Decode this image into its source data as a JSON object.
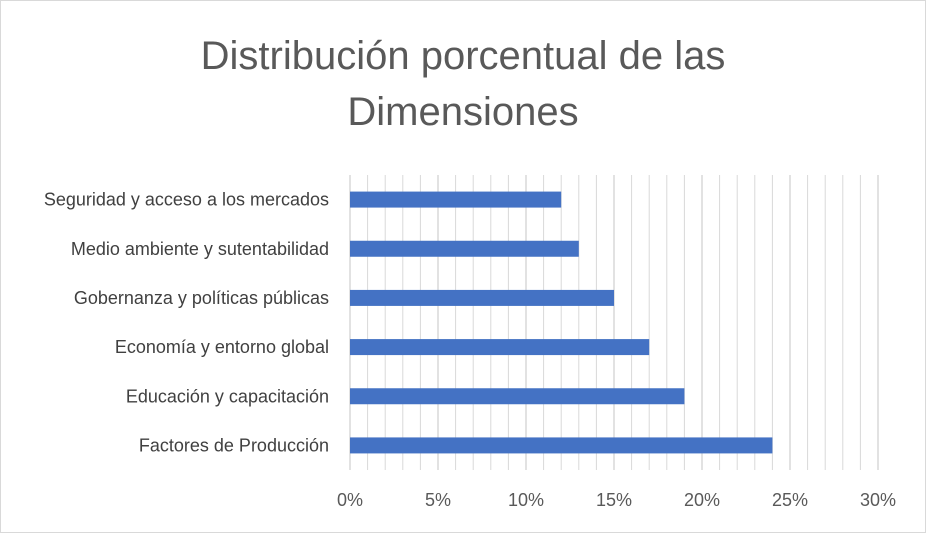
{
  "chart_data": {
    "type": "bar",
    "orientation": "horizontal",
    "title": "Distribución porcentual de las Dimensiones",
    "title_lines": [
      "Distribución porcentual de las",
      "Dimensiones"
    ],
    "categories": [
      "Seguridad y acceso a los mercados",
      "Medio ambiente y sutentabilidad",
      "Gobernanza y políticas públicas",
      "Economía y entorno global",
      "Educación y capacitación",
      "Factores de Producción"
    ],
    "values": [
      12,
      13,
      15,
      17,
      19,
      24
    ],
    "value_unit": "%",
    "xlim": [
      0,
      30
    ],
    "x_ticks": [
      0,
      5,
      10,
      15,
      20,
      25,
      30
    ],
    "x_tick_labels": [
      "0%",
      "5%",
      "10%",
      "15%",
      "20%",
      "25%",
      "30%"
    ],
    "minor_grid_step": 1,
    "xlabel": "",
    "ylabel": "",
    "grid": true,
    "legend": "none",
    "bar_color": "#4472C4",
    "grid_color": "#d9d9d9"
  }
}
